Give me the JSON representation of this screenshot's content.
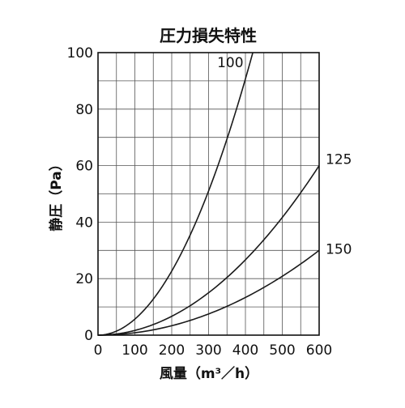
{
  "chart_data": {
    "type": "line",
    "title": "圧力損失特性",
    "xlabel": "風量（m³／h）",
    "ylabel": "静圧（Pa）",
    "xlim": [
      0,
      600
    ],
    "ylim": [
      0,
      100
    ],
    "x_ticks": [
      "0",
      "100",
      "200",
      "300",
      "400",
      "500",
      "600"
    ],
    "y_ticks": [
      "0",
      "20",
      "40",
      "60",
      "80",
      "100"
    ],
    "grid": true,
    "grid_x_step": 50,
    "grid_y_step": 10,
    "colors": {
      "line": "#1a1a1a",
      "grid": "#555555",
      "frame": "#111111"
    },
    "series": [
      {
        "name": "100",
        "x": [
          0,
          50,
          100,
          150,
          200,
          250,
          300,
          350,
          400,
          420
        ],
        "y": [
          0,
          1.4,
          5.7,
          12.8,
          22.7,
          35.4,
          51.0,
          69.5,
          90.7,
          100
        ]
      },
      {
        "name": "125",
        "x": [
          0,
          50,
          100,
          150,
          200,
          250,
          300,
          350,
          400,
          450,
          500,
          550,
          600
        ],
        "y": [
          0,
          0.4,
          1.7,
          3.8,
          6.7,
          10.4,
          15.0,
          20.4,
          26.7,
          33.8,
          41.7,
          50.4,
          60.0
        ]
      },
      {
        "name": "150",
        "x": [
          0,
          50,
          100,
          150,
          200,
          250,
          300,
          350,
          400,
          450,
          500,
          550,
          600
        ],
        "y": [
          0,
          0.2,
          0.8,
          1.9,
          3.3,
          5.2,
          7.5,
          10.2,
          13.3,
          16.9,
          20.8,
          25.2,
          30.0
        ]
      }
    ]
  }
}
